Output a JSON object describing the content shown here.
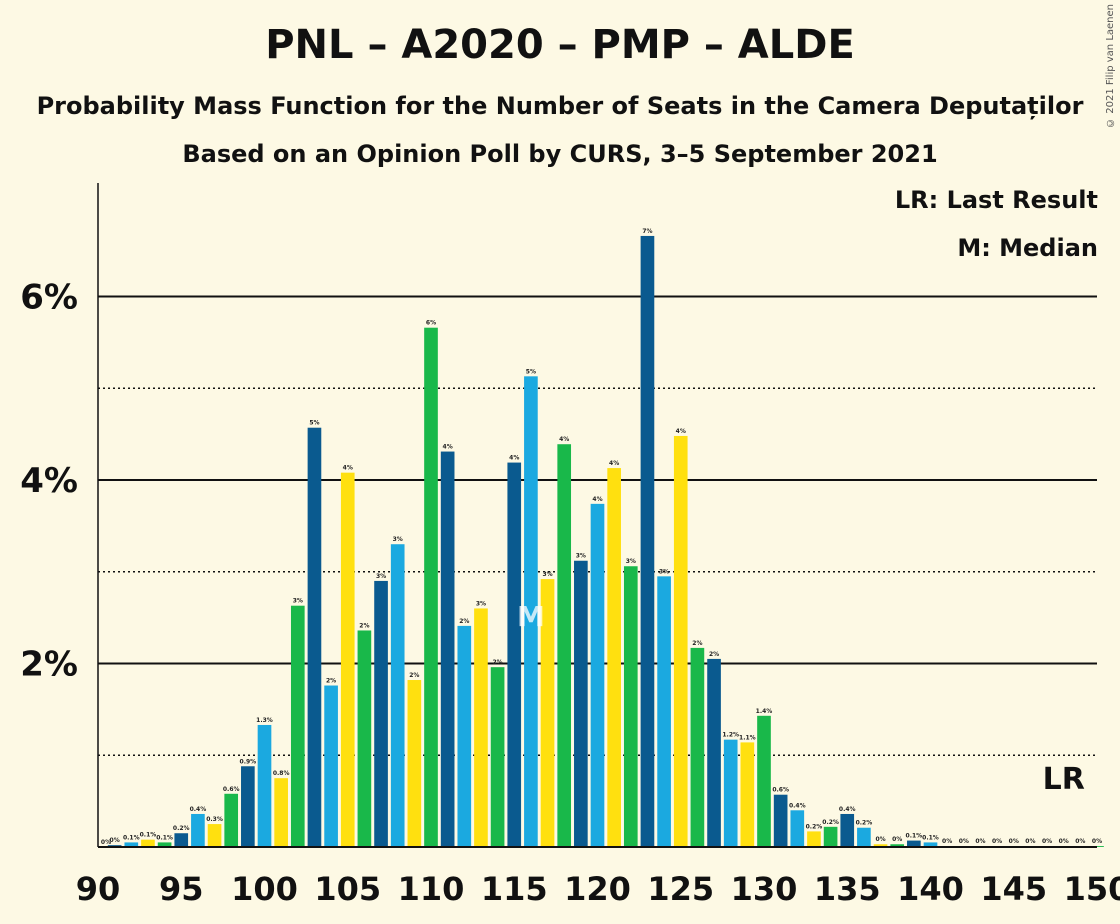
{
  "title": "PNL – A2020 – PMP – ALDE",
  "subtitle": "Probability Mass Function for the Number of Seats in the Camera Deputaților",
  "subtitle2": "Based on an Opinion Poll by CURS, 3–5 September 2021",
  "copyright": "© 2021 Filip van Laenen",
  "legend": {
    "lr": "LR: Last Result",
    "m": "M: Median"
  },
  "markers": {
    "lr_label": "LR",
    "median_label": "M",
    "median_seat": 116,
    "last_result_seat": 148
  },
  "colors": {
    "blue": "#0a5a8f",
    "cyan": "#1ba9e0",
    "yellow": "#ffe00f",
    "green": "#19b84a",
    "background": "#fdf9e4"
  },
  "chart_data": {
    "type": "bar",
    "xlabel": "",
    "ylabel": "",
    "xlim": [
      90,
      150
    ],
    "ylim": [
      0,
      7.2
    ],
    "y_ticks": [
      {
        "value": 2,
        "label": "2%"
      },
      {
        "value": 4,
        "label": "4%"
      },
      {
        "value": 6,
        "label": "6%"
      }
    ],
    "y_minor_gridlines": [
      1,
      3,
      5
    ],
    "x_ticks": [
      90,
      95,
      100,
      105,
      110,
      115,
      120,
      125,
      130,
      135,
      140,
      145,
      150
    ],
    "x": [
      91,
      92,
      93,
      94,
      95,
      96,
      97,
      98,
      99,
      100,
      101,
      102,
      103,
      104,
      105,
      106,
      107,
      108,
      109,
      110,
      111,
      112,
      113,
      114,
      115,
      116,
      117,
      118,
      119,
      120,
      121,
      122,
      123,
      124,
      125,
      126,
      127,
      128,
      129,
      130,
      131,
      132,
      133,
      134,
      135,
      136,
      137,
      138,
      139,
      140,
      141,
      142,
      143,
      144,
      145,
      146,
      147,
      148,
      149,
      150
    ],
    "values": [
      0.02,
      0.05,
      0.08,
      0.05,
      0.15,
      0.36,
      0.25,
      0.58,
      0.88,
      1.33,
      0.75,
      2.63,
      4.57,
      1.76,
      4.08,
      2.36,
      2.9,
      3.3,
      1.82,
      5.66,
      4.31,
      2.41,
      2.6,
      1.96,
      4.19,
      5.13,
      2.92,
      4.39,
      3.12,
      3.74,
      4.13,
      3.06,
      6.66,
      2.95,
      4.48,
      2.17,
      2.05,
      1.17,
      1.14,
      1.43,
      0.57,
      0.4,
      0.17,
      0.22,
      0.36,
      0.21,
      0.03,
      0.03,
      0.07,
      0.05,
      0.01,
      0.01,
      0.01,
      0.01,
      0.01,
      0.01,
      0.01,
      0.01,
      0.01,
      0.01
    ],
    "data_labels": [
      "0%",
      "0.1%",
      "0.1%",
      "0.1%",
      "0.2%",
      "0.4%",
      "0.3%",
      "0.6%",
      "0.9%",
      "1.3%",
      "0.8%",
      "3%",
      "5%",
      "2%",
      "4%",
      "2%",
      "3%",
      "3%",
      "2%",
      "6%",
      "4%",
      "2%",
      "3%",
      "2%",
      "4%",
      "5%",
      "3%",
      "4%",
      "3%",
      "4%",
      "4%",
      "3%",
      "7%",
      "3%",
      "4%",
      "2%",
      "2%",
      "1.2%",
      "1.1%",
      "1.4%",
      "0.6%",
      "0.4%",
      "0.2%",
      "0.2%",
      "0.4%",
      "0.2%",
      "0%",
      "0%",
      "0.1%",
      "0.1%",
      "0%",
      "0%",
      "0%",
      "0%",
      "0%",
      "0%",
      "0%",
      "0%",
      "0%",
      "0%"
    ],
    "first_label": "0%",
    "bar_color_cycle": [
      "blue",
      "cyan",
      "yellow",
      "green"
    ]
  }
}
